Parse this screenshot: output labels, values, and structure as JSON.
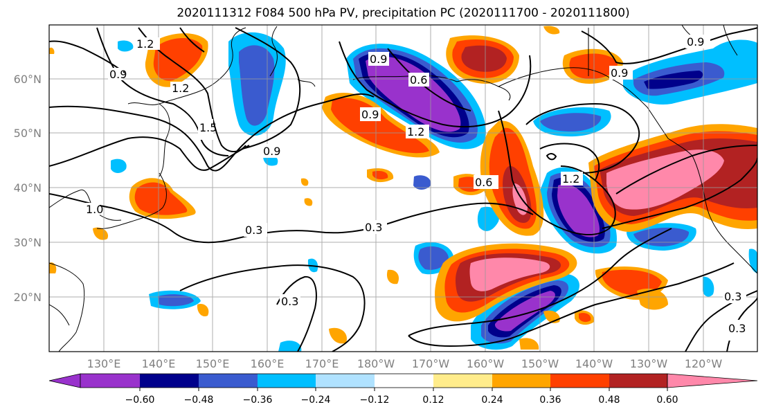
{
  "title": "2020111312 F084 500 hPa PV, precipitation PC (2020111700 - 2020111800)",
  "lat_labels": [
    "60°N",
    "50°N",
    "40°N",
    "30°N",
    "20°N"
  ],
  "lon_labels": [
    "130°E",
    "140°E",
    "150°E",
    "160°E",
    "170°E",
    "180°W",
    "170°W",
    "160°W",
    "150°W",
    "140°W",
    "130°W",
    "120°W"
  ],
  "colorbar": {
    "ticks": [
      "−0.60",
      "−0.48",
      "−0.36",
      "−0.24",
      "−0.12",
      "0.12",
      "0.24",
      "0.36",
      "0.48",
      "0.60"
    ],
    "colors": [
      "#9932cc",
      "#00008b",
      "#3a5bcf",
      "#00bfff",
      "#b0e2ff",
      "#ffffff",
      "#ffec8b",
      "#ffa500",
      "#ff4000",
      "#b22222",
      "#ff88aa"
    ]
  },
  "contour_labels": {
    "a": "1.2",
    "b": "0.9",
    "c": "1.2",
    "d": "1.5",
    "e": "0.9",
    "f": "0.3",
    "g": "0.3",
    "h": "0.6",
    "i": "0.9",
    "j": "1.2",
    "k": "0.9",
    "l": "0.9",
    "m": "0.6",
    "n": "1.2",
    "o": "0.3",
    "p": "0.3",
    "q": "0.3",
    "r": "1.0"
  }
}
